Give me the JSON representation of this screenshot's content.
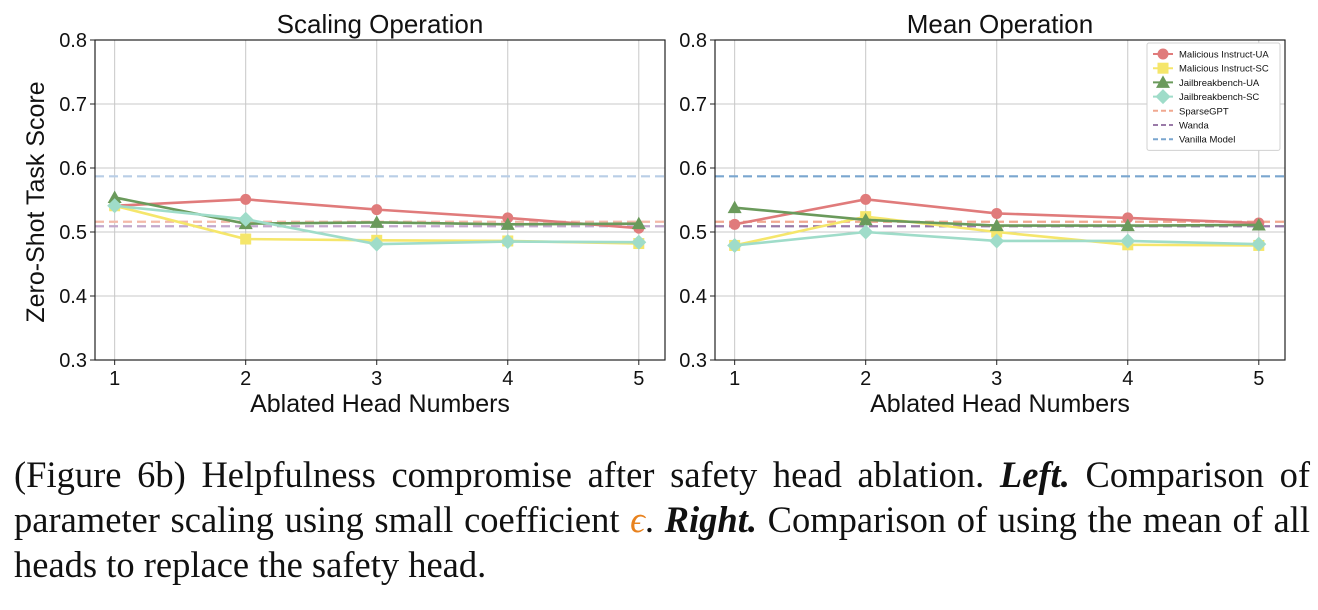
{
  "chart_data": [
    {
      "type": "line",
      "title": "Scaling Operation",
      "xlabel": "Ablated Head Numbers",
      "ylabel": "Zero-Shot Task Score",
      "xlim": [
        0.85,
        5.2
      ],
      "ylim": [
        0.3,
        0.8
      ],
      "x": [
        1,
        2,
        3,
        4,
        5
      ],
      "xticks": [
        "1",
        "2",
        "3",
        "4",
        "5"
      ],
      "yticks": [
        "0.3",
        "0.4",
        "0.5",
        "0.6",
        "0.7",
        "0.8"
      ],
      "grid": true,
      "series": [
        {
          "name": "Malicious Instruct-UA",
          "color": "#e07b7b",
          "marker": "circle",
          "values": [
            0.541,
            0.551,
            0.535,
            0.522,
            0.506
          ]
        },
        {
          "name": "Malicious Instruct-SC",
          "color": "#f5e66b",
          "marker": "square",
          "values": [
            0.541,
            0.489,
            0.487,
            0.486,
            0.482
          ]
        },
        {
          "name": "Jailbreakbench-UA",
          "color": "#6a9a5b",
          "marker": "triangle",
          "values": [
            0.554,
            0.513,
            0.515,
            0.512,
            0.513
          ]
        },
        {
          "name": "Jailbreakbench-SC",
          "color": "#9fdcc9",
          "marker": "diamond",
          "values": [
            0.541,
            0.52,
            0.481,
            0.485,
            0.484
          ]
        }
      ],
      "baselines": [
        {
          "name": "SparseGPT",
          "color": "#f3b9a9",
          "value": 0.516
        },
        {
          "name": "Wanda",
          "color": "#c3a8cc",
          "value": 0.509
        },
        {
          "name": "Vanilla Model",
          "color": "#b9cee6",
          "value": 0.587
        }
      ]
    },
    {
      "type": "line",
      "title": "Mean Operation",
      "xlabel": "Ablated Head Numbers",
      "ylabel": "",
      "xlim": [
        0.85,
        5.2
      ],
      "ylim": [
        0.3,
        0.8
      ],
      "x": [
        1,
        2,
        3,
        4,
        5
      ],
      "xticks": [
        "1",
        "2",
        "3",
        "4",
        "5"
      ],
      "yticks": [
        "0.3",
        "0.4",
        "0.5",
        "0.6",
        "0.7",
        "0.8"
      ],
      "grid": true,
      "legend_position": "top-right",
      "series": [
        {
          "name": "Malicious Instruct-UA",
          "color": "#e07b7b",
          "marker": "circle",
          "values": [
            0.512,
            0.551,
            0.529,
            0.522,
            0.514
          ]
        },
        {
          "name": "Malicious Instruct-SC",
          "color": "#f5e66b",
          "marker": "square",
          "values": [
            0.479,
            0.524,
            0.5,
            0.48,
            0.479
          ]
        },
        {
          "name": "Jailbreakbench-UA",
          "color": "#6a9a5b",
          "marker": "triangle",
          "values": [
            0.538,
            0.519,
            0.51,
            0.51,
            0.511
          ]
        },
        {
          "name": "Jailbreakbench-SC",
          "color": "#9fdcc9",
          "marker": "diamond",
          "values": [
            0.479,
            0.5,
            0.486,
            0.486,
            0.481
          ]
        }
      ],
      "baselines": [
        {
          "name": "SparseGPT",
          "color": "#f0a890",
          "value": 0.516
        },
        {
          "name": "Wanda",
          "color": "#9a7aa8",
          "value": 0.509
        },
        {
          "name": "Vanilla Model",
          "color": "#7aa6cf",
          "value": 0.587
        }
      ]
    }
  ],
  "caption": {
    "prefix": "(Figure 6b) Helpfulness compromise after safety head ablation.",
    "left_label": "Left.",
    "left_text": "Com­parison of parameter scaling using small coefficient",
    "epsilon": "ϵ",
    "period": ".",
    "right_label": "Right.",
    "right_text": "Comparison of using the mean of all heads to replace the safety head."
  }
}
